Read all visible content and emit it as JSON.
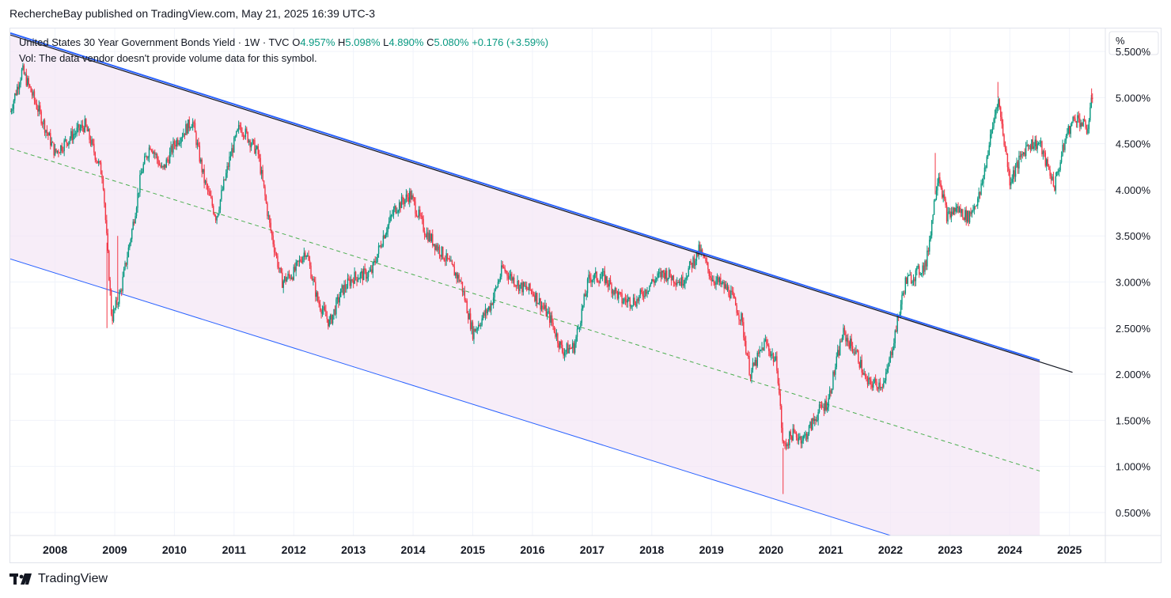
{
  "header": {
    "publisher": "RechercheBay published on TradingView.com, May 21, 2025 16:39 UTC-3"
  },
  "legend": {
    "symbol": "United States 30 Year Government Bonds Yield · 1W · TVC",
    "o_label": "O",
    "o_value": "4.957%",
    "h_label": "H",
    "h_value": "5.098%",
    "l_label": "L",
    "l_value": "4.890%",
    "c_label": "C",
    "c_value": "5.080%",
    "change": "+0.176 (+3.59%)",
    "volume_note": "Vol: The data vendor doesn't provide volume data for this symbol."
  },
  "axis": {
    "unit_label": "%"
  },
  "footer": {
    "brand": "TradingView"
  },
  "colors": {
    "up": "#089981",
    "down": "#f23645",
    "channel_fill": "#f3e5f5",
    "channel_line": "#2962ff",
    "midline": "#4caf50",
    "trendline": "#131722"
  },
  "chart_data": {
    "type": "candlestick",
    "title": "United States 30 Year Government Bonds Yield",
    "interval": "1W",
    "y_ticks": [
      "5.500%",
      "5.000%",
      "4.500%",
      "4.000%",
      "3.500%",
      "3.000%",
      "2.500%",
      "2.000%",
      "1.500%",
      "1.000%",
      "0.500%"
    ],
    "y_tick_values": [
      5.5,
      5.0,
      4.5,
      4.0,
      3.5,
      3.0,
      2.5,
      2.0,
      1.5,
      1.0,
      0.5
    ],
    "x_ticks": [
      "2008",
      "2009",
      "2010",
      "2011",
      "2012",
      "2013",
      "2014",
      "2015",
      "2016",
      "2017",
      "2018",
      "2019",
      "2020",
      "2021",
      "2022",
      "2023",
      "2024",
      "2025"
    ],
    "ylim": [
      0.25,
      5.75
    ],
    "xlim": [
      2007.25,
      2025.6
    ],
    "path": [
      [
        2007.25,
        4.85
      ],
      [
        2007.45,
        5.3
      ],
      [
        2007.7,
        4.9
      ],
      [
        2008.0,
        4.4
      ],
      [
        2008.3,
        4.6
      ],
      [
        2008.5,
        4.7
      ],
      [
        2008.8,
        4.15
      ],
      [
        2008.95,
        2.6
      ],
      [
        2009.1,
        2.9
      ],
      [
        2009.3,
        3.6
      ],
      [
        2009.45,
        4.2
      ],
      [
        2009.6,
        4.5
      ],
      [
        2009.8,
        4.2
      ],
      [
        2010.0,
        4.5
      ],
      [
        2010.3,
        4.75
      ],
      [
        2010.5,
        4.1
      ],
      [
        2010.7,
        3.7
      ],
      [
        2010.95,
        4.4
      ],
      [
        2011.1,
        4.7
      ],
      [
        2011.4,
        4.4
      ],
      [
        2011.6,
        3.6
      ],
      [
        2011.8,
        3.0
      ],
      [
        2012.0,
        3.1
      ],
      [
        2012.2,
        3.35
      ],
      [
        2012.4,
        2.8
      ],
      [
        2012.6,
        2.55
      ],
      [
        2012.8,
        2.9
      ],
      [
        2013.0,
        3.05
      ],
      [
        2013.3,
        3.1
      ],
      [
        2013.5,
        3.5
      ],
      [
        2013.7,
        3.8
      ],
      [
        2013.95,
        3.95
      ],
      [
        2014.2,
        3.55
      ],
      [
        2014.5,
        3.3
      ],
      [
        2014.8,
        3.0
      ],
      [
        2015.0,
        2.45
      ],
      [
        2015.3,
        2.75
      ],
      [
        2015.5,
        3.15
      ],
      [
        2015.8,
        2.95
      ],
      [
        2016.0,
        2.9
      ],
      [
        2016.3,
        2.6
      ],
      [
        2016.5,
        2.25
      ],
      [
        2016.7,
        2.3
      ],
      [
        2016.95,
        3.05
      ],
      [
        2017.2,
        3.05
      ],
      [
        2017.5,
        2.8
      ],
      [
        2017.75,
        2.8
      ],
      [
        2018.0,
        3.0
      ],
      [
        2018.2,
        3.1
      ],
      [
        2018.5,
        3.0
      ],
      [
        2018.8,
        3.35
      ],
      [
        2019.0,
        3.05
      ],
      [
        2019.3,
        2.9
      ],
      [
        2019.5,
        2.6
      ],
      [
        2019.65,
        2.0
      ],
      [
        2019.9,
        2.35
      ],
      [
        2020.1,
        2.1
      ],
      [
        2020.2,
        1.2
      ],
      [
        2020.35,
        1.35
      ],
      [
        2020.55,
        1.3
      ],
      [
        2020.8,
        1.6
      ],
      [
        2020.95,
        1.7
      ],
      [
        2021.2,
        2.45
      ],
      [
        2021.45,
        2.2
      ],
      [
        2021.6,
        1.9
      ],
      [
        2021.9,
        1.9
      ],
      [
        2022.0,
        2.2
      ],
      [
        2022.25,
        3.0
      ],
      [
        2022.45,
        3.1
      ],
      [
        2022.6,
        3.2
      ],
      [
        2022.8,
        4.2
      ],
      [
        2022.95,
        3.7
      ],
      [
        2023.1,
        3.8
      ],
      [
        2023.3,
        3.7
      ],
      [
        2023.5,
        3.95
      ],
      [
        2023.8,
        5.0
      ],
      [
        2024.0,
        4.1
      ],
      [
        2024.3,
        4.5
      ],
      [
        2024.5,
        4.5
      ],
      [
        2024.6,
        4.3
      ],
      [
        2024.75,
        4.05
      ],
      [
        2024.95,
        4.6
      ],
      [
        2025.1,
        4.8
      ],
      [
        2025.3,
        4.65
      ],
      [
        2025.4,
        5.08
      ]
    ],
    "spikes": [
      [
        2008.87,
        2.5
      ],
      [
        2009.05,
        3.5
      ],
      [
        2020.2,
        0.7
      ],
      [
        2022.75,
        4.4
      ],
      [
        2023.8,
        5.17
      ],
      [
        2025.37,
        5.1
      ]
    ],
    "channel": {
      "upper": [
        [
          2007.25,
          5.7
        ],
        [
          2024.5,
          2.15
        ]
      ],
      "lower": [
        [
          2007.25,
          3.25
        ],
        [
          2022.0,
          0.25
        ]
      ],
      "mid": [
        [
          2007.25,
          4.45
        ],
        [
          2024.5,
          0.95
        ]
      ],
      "fill_end": 2024.5
    },
    "trendline": [
      [
        2007.25,
        5.68
      ],
      [
        2025.05,
        2.02
      ]
    ]
  }
}
